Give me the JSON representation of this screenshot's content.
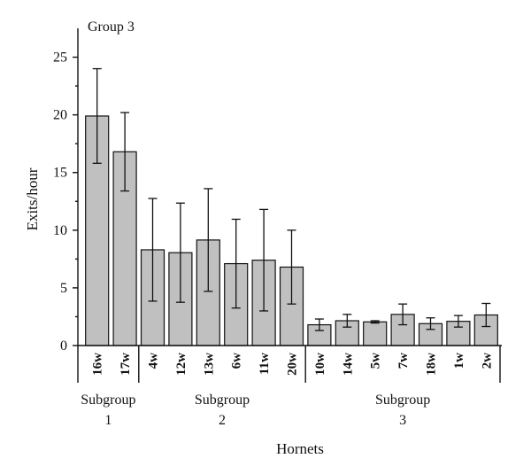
{
  "chart_data": {
    "type": "bar",
    "title": "Group 3",
    "xlabel": "Hornets",
    "ylabel": "Exits/hour",
    "ylim": [
      0,
      27.5
    ],
    "yticks": [
      0,
      5,
      10,
      15,
      20,
      25
    ],
    "grid": false,
    "categories": [
      "16w",
      "17w",
      "4w",
      "12w",
      "13w",
      "6w",
      "11w",
      "20w",
      "10w",
      "14w",
      "5w",
      "7w",
      "18w",
      "1w",
      "2w"
    ],
    "values": [
      19.9,
      16.8,
      8.3,
      8.05,
      9.15,
      7.1,
      7.4,
      6.8,
      1.8,
      2.15,
      2.05,
      2.7,
      1.9,
      2.1,
      2.65
    ],
    "errors": [
      4.1,
      3.4,
      4.45,
      4.3,
      4.45,
      3.85,
      4.4,
      3.2,
      0.5,
      0.55,
      0.1,
      0.9,
      0.5,
      0.5,
      1.0
    ],
    "subgroups": [
      {
        "line1": "Subgroup",
        "line2": "1",
        "start": 0,
        "end": 1
      },
      {
        "line1": "Subgroup",
        "line2": "2",
        "start": 2,
        "end": 7
      },
      {
        "line1": "Subgroup",
        "line2": "3",
        "start": 8,
        "end": 14
      }
    ]
  }
}
